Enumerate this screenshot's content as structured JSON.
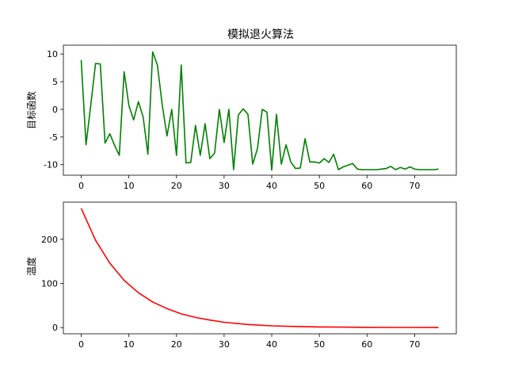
{
  "figure": {
    "title": "模拟退火算法"
  },
  "chart_data": [
    {
      "type": "line",
      "title": "模拟退火算法",
      "xlabel": "",
      "ylabel": "目标函数",
      "color": "#008000",
      "xlim": [
        -3.75,
        78.75
      ],
      "ylim": [
        -11.9,
        11.6
      ],
      "xticks": [
        0,
        10,
        20,
        30,
        40,
        50,
        60,
        70
      ],
      "yticks": [
        -10,
        -5,
        0,
        5,
        10
      ],
      "grid": false,
      "x": [
        0,
        1,
        2,
        3,
        4,
        5,
        6,
        7,
        8,
        9,
        10,
        11,
        12,
        13,
        14,
        15,
        16,
        17,
        18,
        19,
        20,
        21,
        22,
        23,
        24,
        25,
        26,
        27,
        28,
        29,
        30,
        31,
        32,
        33,
        34,
        35,
        36,
        37,
        38,
        39,
        40,
        41,
        42,
        43,
        44,
        45,
        46,
        47,
        48,
        49,
        50,
        51,
        52,
        53,
        54,
        55,
        56,
        57,
        58,
        59,
        60,
        61,
        62,
        63,
        64,
        65,
        66,
        67,
        68,
        69,
        70,
        71,
        72,
        73,
        74,
        75
      ],
      "y": [
        8.9,
        -6.4,
        0.8,
        8.3,
        8.2,
        -6.1,
        -4.4,
        -6.5,
        -8.3,
        6.8,
        0.7,
        -1.9,
        1.4,
        -1.4,
        -8.1,
        10.4,
        8.0,
        0.8,
        -4.8,
        0.0,
        -8.3,
        8.0,
        -9.7,
        -9.6,
        -2.9,
        -8.3,
        -2.6,
        -8.9,
        -7.9,
        0.0,
        -6.0,
        0.0,
        -10.9,
        -1.0,
        0.1,
        -0.9,
        -9.9,
        -7.1,
        0.0,
        -0.5,
        -11.0,
        -0.9,
        -9.9,
        -6.4,
        -9.5,
        -10.7,
        -10.6,
        -5.3,
        -9.5,
        -9.5,
        -9.7,
        -8.9,
        -9.6,
        -8.1,
        -10.9,
        -10.4,
        -10.1,
        -9.8,
        -10.8,
        -10.9,
        -10.9,
        -10.9,
        -10.9,
        -10.8,
        -10.7,
        -10.3,
        -10.9,
        -10.5,
        -10.8,
        -10.4,
        -10.8,
        -10.9,
        -10.9,
        -10.9,
        -10.9,
        -10.8
      ]
    },
    {
      "type": "line",
      "title": "",
      "xlabel": "",
      "ylabel": "温度",
      "color": "#ff0000",
      "xlim": [
        -3.75,
        78.75
      ],
      "ylim": [
        -14,
        284
      ],
      "xticks": [
        0,
        10,
        20,
        30,
        40,
        50,
        60,
        70
      ],
      "yticks": [
        0,
        100,
        200
      ],
      "grid": false,
      "x": [
        0,
        3,
        6,
        9,
        12,
        15,
        18,
        21,
        24,
        27,
        30,
        35,
        40,
        45,
        50,
        55,
        60,
        65,
        70,
        75
      ],
      "y": [
        270,
        198,
        146,
        107,
        79,
        58,
        43,
        31,
        23,
        17,
        12,
        7,
        4,
        2.5,
        1.5,
        1.0,
        0.6,
        0.4,
        0.3,
        0.2
      ]
    }
  ]
}
